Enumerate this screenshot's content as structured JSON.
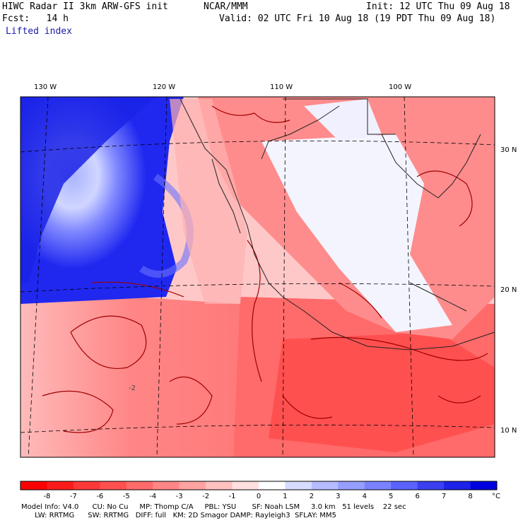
{
  "header": {
    "model_title": "HIWC Radar II 3km ARW-GFS init",
    "org": "NCAR/MMM",
    "init": "Init: 12 UTC Thu 09 Aug 18",
    "fcst": "Fcst:   14 h",
    "valid": "Valid: 02 UTC Fri 10 Aug 18 (19 PDT Thu 09 Aug 18)",
    "field": "Lifted index"
  },
  "map": {
    "lon_labels": [
      "130 W",
      "120 W",
      "110 W",
      "100 W"
    ],
    "lat_labels": [
      "30 N",
      "20 N",
      "10 N"
    ],
    "contour_label": "-2"
  },
  "colorbar": {
    "labels": [
      "-8",
      "-7",
      "-6",
      "-5",
      "-4",
      "-3",
      "-2",
      "-1",
      "0",
      "1",
      "2",
      "3",
      "4",
      "5",
      "6",
      "7",
      "8"
    ],
    "unit": "°C",
    "colors": [
      "#ff0000",
      "#ff1a1a",
      "#ff3838",
      "#ff5050",
      "#ff6a6a",
      "#ff8686",
      "#ffa2a2",
      "#ffc0c0",
      "#ffe0e0",
      "#ffffff",
      "#d6dcff",
      "#b4bcff",
      "#969eff",
      "#7a82ff",
      "#5a62ff",
      "#3a40f0",
      "#1c22e8",
      "#0000e0"
    ]
  },
  "footer": {
    "line1": "Model Info: V4.0      CU: No Cu     MP: Thomp C/A     PBL: YSU       SF: Noah LSM     3.0 km   51 levels    22 sec",
    "line2": "      LW: RRTMG      SW: RRTMG   DIFF: full   KM: 2D Smagor DAMP: Rayleigh3  SFLAY: MM5"
  }
}
